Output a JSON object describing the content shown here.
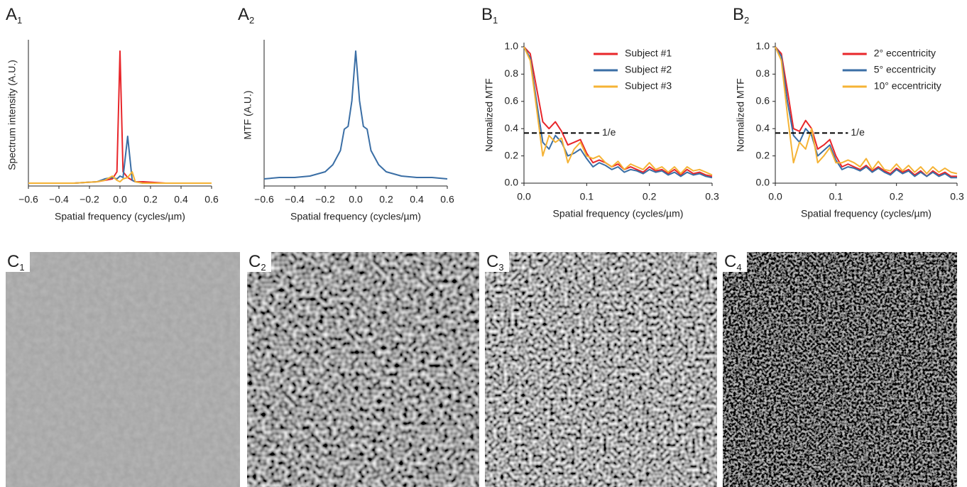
{
  "chart_data": [
    {
      "type": "line",
      "panel": "A",
      "panel_sub": "1",
      "xlabel": "Spatial frequency (cycles/µm)",
      "ylabel": "Spectrum intensity (A.U.)",
      "x": [
        -0.6,
        -0.3,
        -0.15,
        -0.1,
        -0.05,
        -0.02,
        0,
        0.02,
        0.05,
        0.08,
        0.1,
        0.15,
        0.3,
        0.6
      ],
      "series": [
        {
          "color": "#e8262a",
          "values": [
            0.02,
            0.02,
            0.03,
            0.04,
            0.05,
            0.1,
            0.95,
            0.1,
            0.06,
            0.04,
            0.03,
            0.03,
            0.02,
            0.02
          ]
        },
        {
          "color": "#3a6ea5",
          "values": [
            0.02,
            0.02,
            0.03,
            0.05,
            0.06,
            0.05,
            0.07,
            0.06,
            0.35,
            0.04,
            0.03,
            0.02,
            0.02,
            0.02
          ]
        },
        {
          "color": "#f5b335",
          "values": [
            0.02,
            0.02,
            0.03,
            0.04,
            0.07,
            0.04,
            0.03,
            0.05,
            0.06,
            0.1,
            0.03,
            0.02,
            0.02,
            0.02
          ]
        }
      ],
      "xlim": [
        -0.6,
        0.6
      ],
      "ylim": [
        0,
        1
      ],
      "xticks": [
        {
          "value": -0.6,
          "label": "−0.6"
        },
        {
          "value": -0.4,
          "label": "−0.4"
        },
        {
          "value": -0.2,
          "label": "−0.2"
        },
        {
          "value": 0,
          "label": "0.0"
        },
        0.2,
        0.4,
        0.6
      ]
    },
    {
      "type": "line",
      "panel": "A",
      "panel_sub": "2",
      "xlabel": "Spatial frequency (cycles/µm)",
      "ylabel": "MTF (A.U.)",
      "x": [
        -0.6,
        -0.5,
        -0.4,
        -0.3,
        -0.2,
        -0.15,
        -0.1,
        -0.075,
        -0.05,
        -0.025,
        0,
        0.025,
        0.05,
        0.075,
        0.1,
        0.15,
        0.2,
        0.3,
        0.4,
        0.5,
        0.6
      ],
      "series": [
        {
          "color": "#3a6ea5",
          "values": [
            0.05,
            0.06,
            0.06,
            0.07,
            0.1,
            0.15,
            0.25,
            0.4,
            0.42,
            0.6,
            0.95,
            0.6,
            0.42,
            0.4,
            0.25,
            0.15,
            0.1,
            0.07,
            0.06,
            0.06,
            0.05
          ]
        }
      ],
      "xlim": [
        -0.6,
        0.6
      ],
      "ylim": [
        0,
        1
      ],
      "xticks": [
        {
          "value": -0.6,
          "label": "−0.6"
        },
        {
          "value": -0.4,
          "label": "−0.4"
        },
        {
          "value": -0.2,
          "label": "−0.2"
        },
        {
          "value": 0,
          "label": "0.0"
        },
        0.2,
        0.4,
        0.6
      ]
    },
    {
      "type": "line",
      "panel": "B",
      "panel_sub": "1",
      "xlabel": "Spatial frequency (cycles/µm)",
      "ylabel": "Normalized MTF",
      "x": [
        0,
        0.01,
        0.02,
        0.03,
        0.04,
        0.05,
        0.06,
        0.07,
        0.08,
        0.09,
        0.1,
        0.11,
        0.12,
        0.13,
        0.14,
        0.15,
        0.16,
        0.17,
        0.18,
        0.19,
        0.2,
        0.21,
        0.22,
        0.23,
        0.24,
        0.25,
        0.26,
        0.27,
        0.28,
        0.29,
        0.3
      ],
      "series": [
        {
          "name": "Subject #1",
          "color": "#e8262a",
          "values": [
            1.0,
            0.95,
            0.7,
            0.45,
            0.4,
            0.45,
            0.38,
            0.28,
            0.3,
            0.32,
            0.22,
            0.15,
            0.17,
            0.15,
            0.12,
            0.14,
            0.1,
            0.12,
            0.1,
            0.08,
            0.12,
            0.09,
            0.1,
            0.07,
            0.1,
            0.06,
            0.1,
            0.07,
            0.08,
            0.06,
            0.05
          ]
        },
        {
          "name": "Subject #2",
          "color": "#3a6ea5",
          "values": [
            1.0,
            0.92,
            0.6,
            0.3,
            0.25,
            0.35,
            0.3,
            0.2,
            0.22,
            0.25,
            0.18,
            0.12,
            0.15,
            0.13,
            0.1,
            0.12,
            0.08,
            0.1,
            0.09,
            0.07,
            0.1,
            0.08,
            0.09,
            0.06,
            0.08,
            0.05,
            0.08,
            0.06,
            0.07,
            0.05,
            0.04
          ]
        },
        {
          "name": "Subject #3",
          "color": "#f5b335",
          "values": [
            1.0,
            0.9,
            0.55,
            0.2,
            0.35,
            0.3,
            0.33,
            0.15,
            0.25,
            0.3,
            0.2,
            0.18,
            0.2,
            0.15,
            0.12,
            0.16,
            0.1,
            0.14,
            0.12,
            0.1,
            0.15,
            0.1,
            0.12,
            0.08,
            0.12,
            0.07,
            0.12,
            0.09,
            0.1,
            0.08,
            0.06
          ]
        }
      ],
      "xlim": [
        0,
        0.3
      ],
      "ylim": [
        0,
        1
      ],
      "xticks": [
        {
          "value": 0,
          "label": "0.0"
        },
        0.1,
        0.2,
        0.3
      ],
      "yticks": [
        {
          "value": 0,
          "label": "0.0"
        },
        0.2,
        0.4,
        0.6,
        0.8,
        {
          "value": 1,
          "label": "1.0"
        }
      ],
      "threshold": {
        "value": 0.368,
        "label": "1/e"
      },
      "legend": "upper right"
    },
    {
      "type": "line",
      "panel": "B",
      "panel_sub": "2",
      "xlabel": "Spatial frequency (cycles/µm)",
      "ylabel": "Normalized MTF",
      "x": [
        0,
        0.01,
        0.02,
        0.03,
        0.04,
        0.05,
        0.06,
        0.07,
        0.08,
        0.09,
        0.1,
        0.11,
        0.12,
        0.13,
        0.14,
        0.15,
        0.16,
        0.17,
        0.18,
        0.19,
        0.2,
        0.21,
        0.22,
        0.23,
        0.24,
        0.25,
        0.26,
        0.27,
        0.28,
        0.29,
        0.3
      ],
      "series": [
        {
          "name": "2° eccentricity",
          "color": "#e8262a",
          "values": [
            1.0,
            0.95,
            0.68,
            0.4,
            0.38,
            0.46,
            0.4,
            0.25,
            0.28,
            0.32,
            0.2,
            0.12,
            0.14,
            0.12,
            0.1,
            0.13,
            0.09,
            0.12,
            0.09,
            0.07,
            0.11,
            0.08,
            0.1,
            0.06,
            0.09,
            0.05,
            0.09,
            0.06,
            0.08,
            0.05,
            0.05
          ]
        },
        {
          "name": "5° eccentricity",
          "color": "#3a6ea5",
          "values": [
            1.0,
            0.93,
            0.6,
            0.35,
            0.3,
            0.4,
            0.35,
            0.2,
            0.24,
            0.28,
            0.17,
            0.1,
            0.12,
            0.11,
            0.09,
            0.12,
            0.08,
            0.11,
            0.08,
            0.06,
            0.1,
            0.07,
            0.09,
            0.05,
            0.08,
            0.05,
            0.08,
            0.05,
            0.07,
            0.04,
            0.04
          ]
        },
        {
          "name": "10° eccentricity",
          "color": "#f5b335",
          "values": [
            1.0,
            0.9,
            0.5,
            0.15,
            0.3,
            0.25,
            0.4,
            0.15,
            0.2,
            0.26,
            0.15,
            0.15,
            0.17,
            0.15,
            0.12,
            0.18,
            0.1,
            0.16,
            0.1,
            0.09,
            0.14,
            0.09,
            0.13,
            0.08,
            0.12,
            0.07,
            0.12,
            0.08,
            0.11,
            0.08,
            0.07
          ]
        }
      ],
      "xlim": [
        0,
        0.3
      ],
      "ylim": [
        0,
        1
      ],
      "xticks": [
        {
          "value": 0,
          "label": "0.0"
        },
        0.1,
        0.2,
        0.3
      ],
      "yticks": [
        {
          "value": 0,
          "label": "0.0"
        },
        0.2,
        0.4,
        0.6,
        0.8,
        {
          "value": 1,
          "label": "1.0"
        }
      ],
      "threshold": {
        "value": 0.368,
        "label": "1/e"
      },
      "legend": "upper right"
    }
  ],
  "images": [
    {
      "panel": "C",
      "panel_sub": "1"
    },
    {
      "panel": "C",
      "panel_sub": "2"
    },
    {
      "panel": "C",
      "panel_sub": "3"
    },
    {
      "panel": "C",
      "panel_sub": "4"
    }
  ]
}
